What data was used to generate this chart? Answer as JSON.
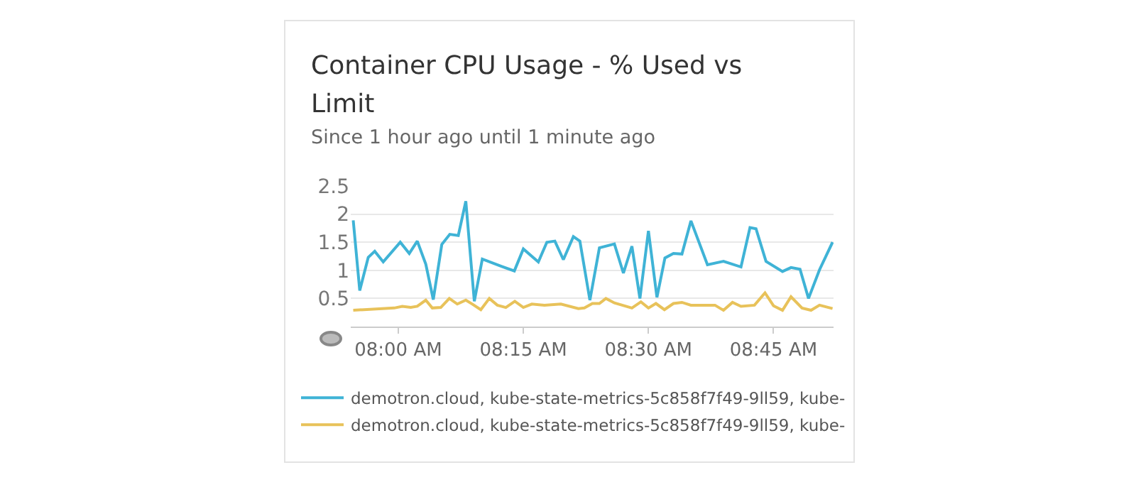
{
  "chart_data": {
    "type": "line",
    "title": "Container CPU Usage - % Used vs Limit",
    "subtitle": "Since 1 hour ago until 1 minute ago",
    "x": [
      7.91,
      7.923,
      7.94,
      7.953,
      7.97,
      8.004,
      8.022,
      8.038,
      8.055,
      8.07,
      8.087,
      8.103,
      8.12,
      8.135,
      8.152,
      8.168,
      8.207,
      8.232,
      8.25,
      8.28,
      8.297,
      8.313,
      8.33,
      8.35,
      8.363,
      8.383,
      8.402,
      8.432,
      8.45,
      8.467,
      8.483,
      8.5,
      8.517,
      8.533,
      8.55,
      8.567,
      8.585,
      8.618,
      8.65,
      8.685,
      8.703,
      8.715,
      8.735,
      8.768,
      8.785,
      8.803,
      8.82,
      8.842,
      8.868
    ],
    "series": [
      {
        "name": "demotron.cloud, kube-state-metrics-5c858f7f49-9ll59, kube-",
        "color": "#3fb3d6",
        "values": [
          1.89,
          0.64,
          1.23,
          1.34,
          1.15,
          1.5,
          1.3,
          1.52,
          1.11,
          0.48,
          1.46,
          1.64,
          1.62,
          2.23,
          0.45,
          1.2,
          1.07,
          0.99,
          1.38,
          1.15,
          1.5,
          1.52,
          1.19,
          1.6,
          1.52,
          0.47,
          1.4,
          1.47,
          0.95,
          1.43,
          0.5,
          1.7,
          0.52,
          1.22,
          1.3,
          1.29,
          1.88,
          1.1,
          1.16,
          1.06,
          1.76,
          1.74,
          1.16,
          0.98,
          1.05,
          1.02,
          0.5,
          1.01,
          1.5
        ]
      },
      {
        "name": "demotron.cloud, kube-state-metrics-5c858f7f49-9ll59, kube-",
        "color": "#e8c25a",
        "x": [
          7.91,
          7.992,
          8.008,
          8.025,
          8.038,
          8.055,
          8.068,
          8.085,
          8.102,
          8.118,
          8.135,
          8.148,
          8.165,
          8.182,
          8.198,
          8.215,
          8.233,
          8.25,
          8.267,
          8.292,
          8.325,
          8.36,
          8.372,
          8.388,
          8.402,
          8.415,
          8.432,
          8.467,
          8.485,
          8.5,
          8.515,
          8.532,
          8.55,
          8.567,
          8.585,
          8.633,
          8.65,
          8.668,
          8.685,
          8.712,
          8.733,
          8.75,
          8.768,
          8.785,
          8.807,
          8.825,
          8.842,
          8.868
        ],
        "values": [
          0.29,
          0.33,
          0.36,
          0.34,
          0.36,
          0.47,
          0.33,
          0.34,
          0.5,
          0.4,
          0.47,
          0.4,
          0.3,
          0.5,
          0.38,
          0.34,
          0.45,
          0.34,
          0.4,
          0.38,
          0.4,
          0.32,
          0.33,
          0.41,
          0.41,
          0.5,
          0.42,
          0.33,
          0.44,
          0.33,
          0.41,
          0.3,
          0.41,
          0.43,
          0.38,
          0.38,
          0.29,
          0.43,
          0.36,
          0.38,
          0.6,
          0.37,
          0.29,
          0.53,
          0.33,
          0.29,
          0.38,
          0.32
        ]
      }
    ],
    "xlim": [
      7.905,
      8.87
    ],
    "xticks": [
      {
        "value": 8,
        "label": "08:00 AM"
      },
      {
        "value": 8.25,
        "label": "08:15 AM"
      },
      {
        "value": 8.5,
        "label": "08:30 AM"
      },
      {
        "value": 8.75,
        "label": "08:45 AM"
      }
    ],
    "ylim": [
      0,
      2.5
    ],
    "yticks": [
      0.5,
      1,
      1.5,
      2,
      2.5
    ],
    "grid": "y",
    "legend": "bottom",
    "marker": "none",
    "line_style": "solid"
  }
}
